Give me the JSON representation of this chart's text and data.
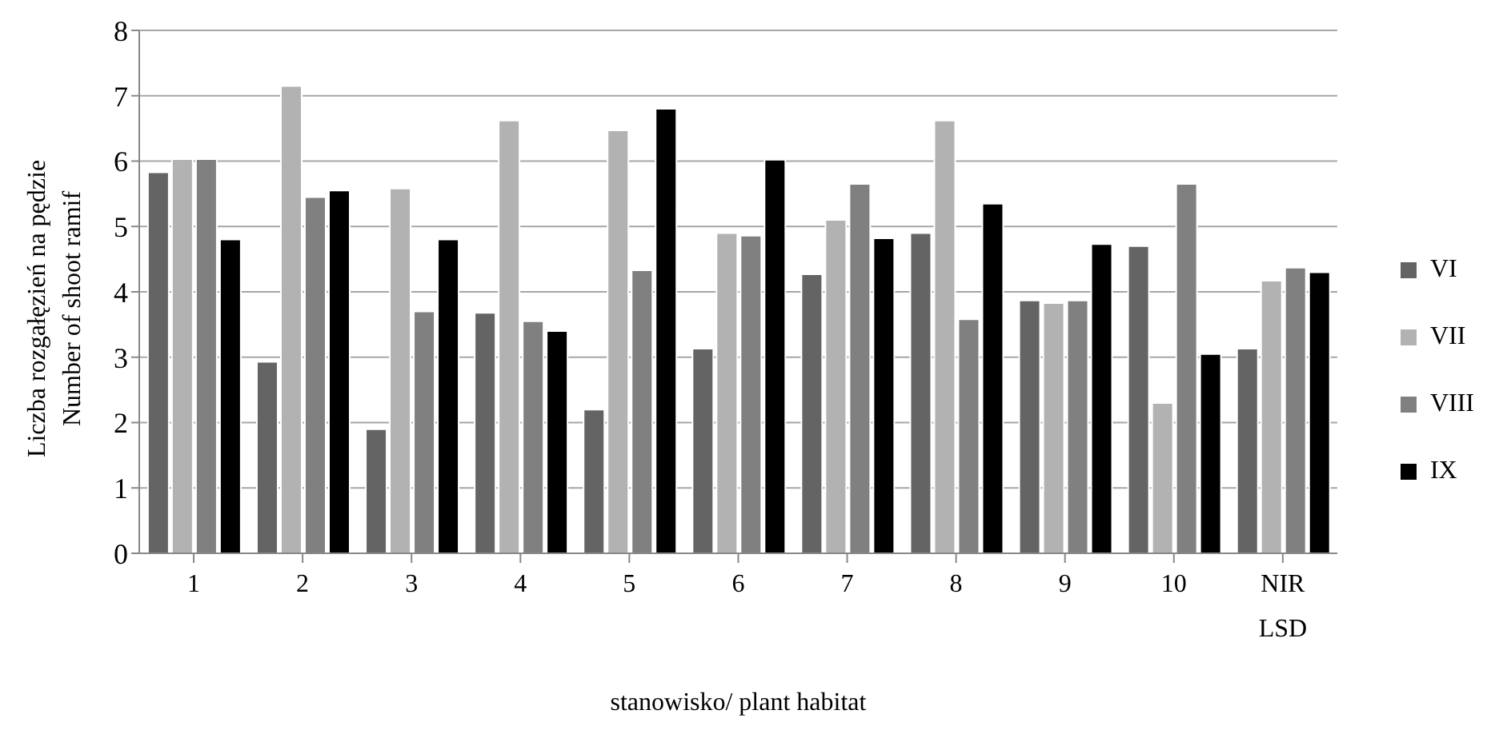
{
  "chart_data": {
    "type": "bar",
    "xlabel": "stanowisko/ plant habitat",
    "ylabel": "Liczba rozgałęzień na pędzie\nNumber of shoot ramif",
    "categories": [
      "1",
      "2",
      "3",
      "4",
      "5",
      "6",
      "7",
      "8",
      "9",
      "10",
      "NIR\nLSD"
    ],
    "series": [
      {
        "name": "VI",
        "color": "#646464",
        "values": [
          5.83,
          2.93,
          1.9,
          3.68,
          2.2,
          3.13,
          4.27,
          4.9,
          3.87,
          4.7,
          3.13
        ]
      },
      {
        "name": "VII",
        "color": "#b2b2b2",
        "values": [
          6.03,
          7.15,
          5.58,
          6.62,
          6.47,
          4.9,
          5.1,
          6.62,
          3.83,
          2.3,
          4.17
        ]
      },
      {
        "name": "VIII",
        "color": "#808080",
        "values": [
          6.03,
          5.45,
          3.7,
          3.55,
          4.33,
          4.86,
          5.65,
          3.58,
          3.87,
          5.65,
          4.37
        ]
      },
      {
        "name": "IX",
        "color": "#000000",
        "values": [
          4.8,
          5.55,
          4.8,
          3.4,
          6.8,
          6.02,
          4.82,
          5.35,
          4.73,
          3.05,
          4.3
        ]
      }
    ],
    "ylim": [
      0,
      8
    ],
    "yticks": [
      0,
      1,
      2,
      3,
      4,
      5,
      6,
      7,
      8
    ],
    "grid": "y",
    "legend": "right"
  }
}
